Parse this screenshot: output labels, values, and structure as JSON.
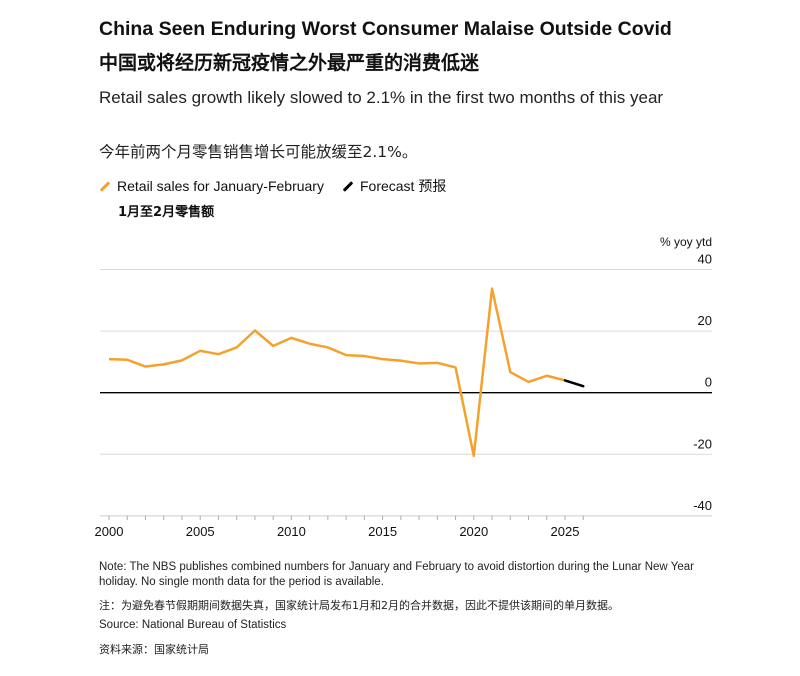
{
  "title": "China Seen Enduring Worst Consumer Malaise Outside Covid",
  "title_cn": "中国或将经历新冠疫情之外最严重的消费低迷",
  "subtitle": "Retail sales growth likely slowed to 2.1% in the first two months of this year",
  "subtitle_cn": "今年前两个月零售销售增长可能放缓至2.1%。",
  "legend": {
    "actual": "Retail sales for January-February",
    "forecast": "Forecast 预报",
    "actual_cn": "1月至2月零售额"
  },
  "colors": {
    "actual": "#f5a12d",
    "forecast": "#000000",
    "grid": "#d9d9d9",
    "zero": "#000000"
  },
  "chart_data": {
    "type": "line",
    "ylabel": "% yoy ytd",
    "ylim": [
      -40,
      40
    ],
    "yticks": [
      40,
      20,
      0,
      -20,
      -40
    ],
    "xlim": [
      2000,
      2026
    ],
    "xticks": [
      2000,
      2005,
      2010,
      2015,
      2020,
      2025
    ],
    "grid": true,
    "legend_position": "top-left",
    "series": [
      {
        "name": "Retail sales for January-February",
        "x": [
          2000,
          2001,
          2002,
          2003,
          2004,
          2005,
          2006,
          2007,
          2008,
          2009,
          2010,
          2011,
          2012,
          2013,
          2014,
          2015,
          2016,
          2017,
          2018,
          2019,
          2020,
          2021,
          2022,
          2023,
          2024,
          2025
        ],
        "y": [
          10.9,
          10.7,
          8.5,
          9.2,
          10.5,
          13.6,
          12.5,
          14.7,
          20.2,
          15.2,
          17.8,
          15.9,
          14.7,
          12.2,
          11.9,
          10.9,
          10.4,
          9.5,
          9.7,
          8.2,
          -20.5,
          33.8,
          6.7,
          3.5,
          5.5,
          4.0
        ]
      },
      {
        "name": "Forecast 预报",
        "x": [
          2025,
          2026
        ],
        "y": [
          4.0,
          2.1
        ]
      }
    ]
  },
  "notes": {
    "note": "Note: The NBS publishes combined numbers for January and February to avoid distortion during the Lunar New Year holiday. No single month data for the period is available.",
    "note_cn": "注：为避免春节假期期间数据失真，国家统计局发布1月和2月的合并数据，因此不提供该期间的单月数据。",
    "source": "Source: National Bureau of Statistics",
    "source_cn": "资料来源：国家统计局"
  }
}
